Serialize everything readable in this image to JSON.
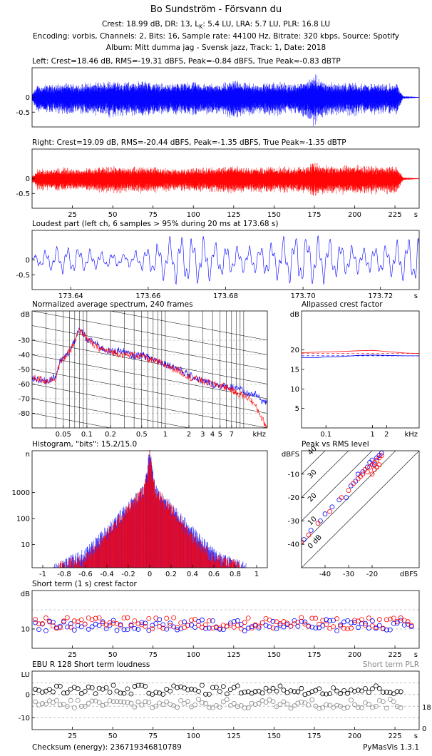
{
  "title": "Bo Sundström - Försvann du",
  "header": {
    "line1_prefix": "Crest: 18.99 dB,  DR: 13,  L",
    "line1_sub": "K",
    "line1_suffix": ": 5.4 LU,  LRA: 5.7 LU,  PLR: 16.8 LU",
    "line2": "Encoding: vorbis,  Channels: 2,  Bits: 16,  Sample rate: 44100 Hz,  Bitrate: 320 kbps,  Source: Spotify",
    "line3": "Album: Mitt dumma jag - Svensk jazz,  Track: 1,  Date: 2018"
  },
  "footer": {
    "checksum": "Checksum (energy): 236719346810789",
    "version": "PyMasVis 1.3.1"
  },
  "colors": {
    "left": "#0000ff",
    "right": "#ff0000",
    "grid": "#999999",
    "axis": "#000000"
  },
  "chart_data": [
    {
      "id": "left",
      "type": "line",
      "title": "Left: Crest=18.46 dB, RMS=-19.31 dBFS, Peak=-0.84 dBFS, True Peak≈-0.83 dBTP",
      "xlim": [
        0,
        240
      ],
      "ylim": [
        -1,
        1
      ],
      "yticks": [
        {
          "v": 0,
          "label": "0"
        },
        {
          "v": -0.5,
          "label": "-0.5"
        }
      ],
      "envelope_t": [
        0,
        3,
        10,
        20,
        30,
        40,
        50,
        60,
        70,
        80,
        90,
        100,
        110,
        120,
        125,
        130,
        140,
        150,
        160,
        170,
        175,
        180,
        190,
        200,
        210,
        220,
        226,
        230,
        240
      ],
      "envelope_amp": [
        0.1,
        0.45,
        0.45,
        0.5,
        0.5,
        0.55,
        0.6,
        0.55,
        0.6,
        0.5,
        0.5,
        0.55,
        0.5,
        0.55,
        0.65,
        0.55,
        0.5,
        0.55,
        0.5,
        0.6,
        0.85,
        0.6,
        0.5,
        0.55,
        0.5,
        0.5,
        0.5,
        0.05,
        0.01
      ]
    },
    {
      "id": "right",
      "type": "line",
      "title": "Right: Crest=19.09 dB, RMS=-20.44 dBFS, Peak=-1.35 dBFS, True Peak≈-1.35 dBTP",
      "xlim": [
        0,
        240
      ],
      "ylim": [
        -1,
        1
      ],
      "yticks": [
        {
          "v": 0,
          "label": "0"
        },
        {
          "v": -0.5,
          "label": "-0.5"
        }
      ],
      "xticks": [
        {
          "v": 25,
          "label": "25"
        },
        {
          "v": 50,
          "label": "50"
        },
        {
          "v": 75,
          "label": "75"
        },
        {
          "v": 100,
          "label": "100"
        },
        {
          "v": 125,
          "label": "125"
        },
        {
          "v": 150,
          "label": "150"
        },
        {
          "v": 175,
          "label": "175"
        },
        {
          "v": 200,
          "label": "200"
        },
        {
          "v": 225,
          "label": "225"
        }
      ],
      "xunit": "s",
      "envelope_t": [
        0,
        3,
        10,
        20,
        30,
        40,
        50,
        60,
        70,
        80,
        90,
        100,
        110,
        120,
        125,
        130,
        140,
        150,
        160,
        170,
        175,
        180,
        190,
        200,
        210,
        220,
        226,
        230,
        240
      ],
      "envelope_amp": [
        0.1,
        0.35,
        0.35,
        0.4,
        0.35,
        0.4,
        0.45,
        0.4,
        0.45,
        0.4,
        0.35,
        0.4,
        0.4,
        0.45,
        0.5,
        0.45,
        0.4,
        0.45,
        0.4,
        0.45,
        0.6,
        0.5,
        0.45,
        0.5,
        0.45,
        0.45,
        0.45,
        0.05,
        0.01
      ]
    },
    {
      "id": "loudest",
      "type": "line",
      "title": "Loudest part (left ch, 6 samples > 95% during 20 ms at 173.68 s)",
      "xlim": [
        173.63,
        173.73
      ],
      "ylim": [
        -1,
        1
      ],
      "yticks": [
        {
          "v": 0,
          "label": "0"
        },
        {
          "v": -0.5,
          "label": "-0.5"
        }
      ],
      "xticks": [
        {
          "v": 173.64,
          "label": "173.64"
        },
        {
          "v": 173.66,
          "label": "173.66"
        },
        {
          "v": 173.68,
          "label": "173.68"
        },
        {
          "v": 173.7,
          "label": "173.70"
        },
        {
          "v": 173.72,
          "label": "173.72"
        }
      ],
      "xunit": "s"
    },
    {
      "id": "spectrum",
      "type": "line",
      "title": "Normalized average spectrum, 240 frames",
      "ylabel": "dB",
      "xunit": "kHz",
      "xscale": "log",
      "xlim": [
        0.02,
        20
      ],
      "ylim": [
        -90,
        -10
      ],
      "xticks": [
        {
          "v": 0.05,
          "label": "0.05"
        },
        {
          "v": 0.1,
          "label": "0.1"
        },
        {
          "v": 0.2,
          "label": "0.2"
        },
        {
          "v": 0.5,
          "label": "0.5"
        },
        {
          "v": 1,
          "label": "1"
        },
        {
          "v": 2,
          "label": "2"
        },
        {
          "v": 3,
          "label": "3"
        },
        {
          "v": 4,
          "label": "4"
        },
        {
          "v": 5,
          "label": "5"
        },
        {
          "v": 7,
          "label": "7"
        }
      ],
      "yticks": [
        {
          "v": -30,
          "label": "-30"
        },
        {
          "v": -40,
          "label": "-40"
        },
        {
          "v": -50,
          "label": "-50"
        },
        {
          "v": -60,
          "label": "-60"
        },
        {
          "v": -70,
          "label": "-70"
        },
        {
          "v": -80,
          "label": "-80"
        }
      ],
      "freq_khz": [
        0.02,
        0.03,
        0.04,
        0.045,
        0.05,
        0.06,
        0.07,
        0.08,
        0.09,
        0.1,
        0.12,
        0.15,
        0.2,
        0.25,
        0.3,
        0.4,
        0.5,
        0.7,
        1,
        1.5,
        2,
        3,
        4,
        5,
        6,
        7,
        8,
        9,
        10,
        12,
        14,
        16,
        18,
        20
      ],
      "series": [
        {
          "name": "Left",
          "color": "#0000ff",
          "db": [
            -56,
            -58,
            -55,
            -45,
            -43,
            -38,
            -30,
            -23,
            -25,
            -30,
            -31,
            -35,
            -38,
            -37,
            -38,
            -41,
            -40,
            -43,
            -46,
            -50,
            -54,
            -58,
            -60,
            -61,
            -62,
            -62,
            -62,
            -63,
            -66,
            -67,
            -67,
            -70,
            -72,
            -73
          ]
        },
        {
          "name": "Right",
          "color": "#ff0000",
          "db": [
            -55,
            -58,
            -56,
            -46,
            -43,
            -38,
            -31,
            -24,
            -25,
            -29,
            -33,
            -36,
            -38,
            -39,
            -40,
            -40,
            -41,
            -44,
            -47,
            -51,
            -55,
            -58,
            -60,
            -61,
            -62,
            -64,
            -66,
            -67,
            -68,
            -70,
            -75,
            -80,
            -86,
            -90
          ]
        }
      ]
    },
    {
      "id": "allpass",
      "type": "line",
      "title": "Allpassed crest factor",
      "ylabel": "dB",
      "xunit": "kHz",
      "xscale": "log",
      "xlim": [
        0.03,
        10
      ],
      "ylim": [
        0,
        30
      ],
      "xticks": [
        {
          "v": 0.1,
          "label": "0.1"
        },
        {
          "v": 1,
          "label": "1"
        },
        {
          "v": 2,
          "label": "2"
        }
      ],
      "yticks": [
        {
          "v": 5,
          "label": "5"
        },
        {
          "v": 10,
          "label": "10"
        },
        {
          "v": 15,
          "label": "15"
        },
        {
          "v": 20,
          "label": "20"
        }
      ],
      "series": [
        {
          "name": "Left",
          "color": "#0000ff",
          "x": [
            0.03,
            0.06,
            0.1,
            0.2,
            0.5,
            1,
            2,
            5,
            10
          ],
          "y": [
            18.0,
            18.0,
            18.2,
            18.3,
            18.6,
            18.7,
            18.6,
            18.5,
            18.5
          ]
        },
        {
          "name": "Right",
          "color": "#ff0000",
          "x": [
            0.03,
            0.06,
            0.1,
            0.2,
            0.5,
            1,
            2,
            5,
            10
          ],
          "y": [
            19.3,
            19.4,
            19.5,
            19.6,
            19.8,
            19.9,
            19.6,
            19.2,
            19.1
          ]
        }
      ],
      "reference_lines": [
        18.5,
        19.1
      ]
    },
    {
      "id": "histogram",
      "type": "line",
      "title": "Histogram, \"bits\": 15.2/15.0",
      "ylabel": "n",
      "yscale": "log",
      "xlim": [
        -1.1,
        1.1
      ],
      "ylim": [
        1.3,
        40000
      ],
      "xticks": [
        {
          "v": -1,
          "label": "-1"
        },
        {
          "v": -0.8,
          "label": "-0.8"
        },
        {
          "v": -0.6,
          "label": "-0.6"
        },
        {
          "v": -0.4,
          "label": "-0.4"
        },
        {
          "v": -0.2,
          "label": "-0.2"
        },
        {
          "v": 0,
          "label": "0"
        },
        {
          "v": 0.2,
          "label": "0.2"
        },
        {
          "v": 0.4,
          "label": "0.4"
        },
        {
          "v": 0.6,
          "label": "0.6"
        },
        {
          "v": 0.8,
          "label": "0.8"
        },
        {
          "v": 1,
          "label": "1"
        }
      ],
      "yticks": [
        {
          "v": 10,
          "label": "10"
        },
        {
          "v": 100,
          "label": "100"
        },
        {
          "v": 1000,
          "label": "1000"
        }
      ],
      "series": [
        {
          "name": "Left",
          "color": "#0000ff",
          "x": [
            -0.9,
            -0.8,
            -0.6,
            -0.4,
            -0.2,
            -0.05,
            0,
            0.05,
            0.2,
            0.4,
            0.6,
            0.8,
            0.9
          ],
          "n": [
            1.5,
            2,
            5,
            40,
            300,
            1500,
            40000,
            1500,
            300,
            35,
            5,
            2,
            1.5
          ]
        },
        {
          "name": "Right",
          "color": "#ff0000",
          "x": [
            -0.85,
            -0.8,
            -0.6,
            -0.4,
            -0.2,
            -0.05,
            0,
            0.05,
            0.2,
            0.4,
            0.6,
            0.8,
            0.85
          ],
          "n": [
            1.5,
            1.8,
            3,
            25,
            250,
            1400,
            30000,
            1400,
            230,
            22,
            3,
            1.8,
            1.5
          ]
        }
      ]
    },
    {
      "id": "peakrms",
      "type": "scatter",
      "title": "Peak vs RMS level",
      "ylabel": "dBFS",
      "xlabel": "dBFS",
      "xlim": [
        -50,
        0
      ],
      "ylim": [
        -50,
        0
      ],
      "xticks": [
        {
          "v": -40,
          "label": "-40"
        },
        {
          "v": -30,
          "label": "-30"
        },
        {
          "v": -20,
          "label": "-20"
        }
      ],
      "yticks": [
        {
          "v": -10,
          "label": "-10"
        },
        {
          "v": -20,
          "label": "-20"
        },
        {
          "v": -30,
          "label": "-30"
        },
        {
          "v": -40,
          "label": "-40"
        }
      ],
      "crest_lines": [
        {
          "v": 0,
          "label": "0 dB"
        },
        {
          "v": 10,
          "label": "10"
        },
        {
          "v": 20,
          "label": "20"
        },
        {
          "v": 30,
          "label": "30"
        },
        {
          "v": 40,
          "label": "40"
        }
      ],
      "series": [
        {
          "name": "Left",
          "color": "#0000ff",
          "points": [
            [
              -49,
              -38
            ],
            [
              -46,
              -34
            ],
            [
              -42,
              -30
            ],
            [
              -40,
              -27
            ],
            [
              -37,
              -24
            ],
            [
              -34,
              -21
            ],
            [
              -31,
              -20
            ],
            [
              -29,
              -15
            ],
            [
              -27,
              -13
            ],
            [
              -26,
              -10
            ],
            [
              -24,
              -9
            ],
            [
              -22,
              -7
            ],
            [
              -21,
              -5
            ],
            [
              -20,
              -4
            ],
            [
              -19,
              -6
            ],
            [
              -18,
              -3
            ],
            [
              -17,
              -2
            ],
            [
              -16,
              -1
            ]
          ]
        },
        {
          "name": "Right",
          "color": "#ff0000",
          "points": [
            [
              -50,
              -39
            ],
            [
              -47,
              -36
            ],
            [
              -43,
              -31
            ],
            [
              -38,
              -26
            ],
            [
              -33,
              -20
            ],
            [
              -30,
              -17
            ],
            [
              -28,
              -14
            ],
            [
              -26,
              -12
            ],
            [
              -25,
              -11
            ],
            [
              -24,
              -10
            ],
            [
              -23,
              -8
            ],
            [
              -22,
              -9
            ],
            [
              -21,
              -7
            ],
            [
              -20,
              -6
            ],
            [
              -20,
              -10
            ],
            [
              -19,
              -5
            ],
            [
              -19,
              -8
            ],
            [
              -18,
              -4
            ],
            [
              -18,
              -7
            ],
            [
              -17,
              -3
            ],
            [
              -17,
              -6
            ],
            [
              -16,
              -2
            ]
          ]
        }
      ]
    },
    {
      "id": "shortcrest",
      "type": "scatter",
      "title": "Short term (1 s) crest factor",
      "ylabel": "dB",
      "xunit": "s",
      "xlim": [
        0,
        240
      ],
      "ylim": [
        5,
        20
      ],
      "xticks": [
        {
          "v": 25,
          "label": "25"
        },
        {
          "v": 50,
          "label": "50"
        },
        {
          "v": 75,
          "label": "75"
        },
        {
          "v": 100,
          "label": "100"
        },
        {
          "v": 125,
          "label": "125"
        },
        {
          "v": 150,
          "label": "150"
        },
        {
          "v": 175,
          "label": "175"
        },
        {
          "v": 200,
          "label": "200"
        },
        {
          "v": 225,
          "label": "225"
        }
      ],
      "yticks": [
        {
          "v": 10,
          "label": "10"
        }
      ],
      "gridlines": [
        10,
        15
      ],
      "typical": {
        "left_mean": 11.0,
        "right_mean": 11.5,
        "spread": 1.5
      }
    },
    {
      "id": "ebu",
      "type": "scatter",
      "title": "EBU R 128 Short term loudness",
      "title_right": "Short term PLR",
      "ylabel": "LU",
      "xunit": "s",
      "xlim": [
        0,
        240
      ],
      "ylim": [
        -15,
        10
      ],
      "xticks": [
        {
          "v": 25,
          "label": "25"
        },
        {
          "v": 50,
          "label": "50"
        },
        {
          "v": 75,
          "label": "75"
        },
        {
          "v": 100,
          "label": "100"
        },
        {
          "v": 125,
          "label": "125"
        },
        {
          "v": 150,
          "label": "150"
        },
        {
          "v": 175,
          "label": "175"
        },
        {
          "v": 200,
          "label": "200"
        },
        {
          "v": 225,
          "label": "225"
        }
      ],
      "yticks": [
        {
          "v": 0,
          "label": "0"
        },
        {
          "v": -10,
          "label": "-10"
        }
      ],
      "right_ticks": [
        {
          "v": 18,
          "label": "18"
        },
        {
          "v": 0,
          "label": "0"
        }
      ],
      "gridlines": [
        5,
        0,
        -5,
        -10
      ],
      "typical": {
        "loudness_mean": 2.0,
        "plr_mean": -4.0,
        "spread": 2.0
      }
    }
  ]
}
